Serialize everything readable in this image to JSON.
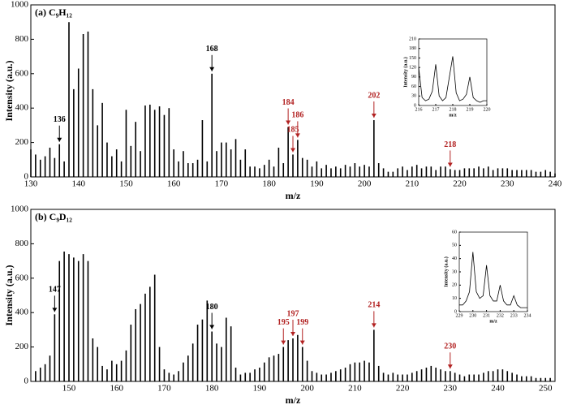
{
  "chart_data": [
    {
      "type": "stem",
      "title": "(a) C₉H₁₂",
      "xlabel": "m/z",
      "ylabel": "Intensity (a.u.)",
      "color": "#000000",
      "xlim": [
        130,
        240
      ],
      "ylim": [
        0,
        1000
      ],
      "xticks": [
        130,
        140,
        150,
        160,
        170,
        180,
        190,
        200,
        210,
        220,
        230,
        240
      ],
      "yticks": [
        0,
        200,
        400,
        600,
        800,
        1000
      ],
      "x": [
        130,
        131,
        132,
        133,
        134,
        135,
        136,
        137,
        138,
        139,
        140,
        141,
        142,
        143,
        144,
        145,
        146,
        147,
        148,
        149,
        150,
        151,
        152,
        153,
        154,
        155,
        156,
        157,
        158,
        159,
        160,
        161,
        162,
        163,
        164,
        165,
        166,
        167,
        168,
        169,
        170,
        171,
        172,
        173,
        174,
        175,
        176,
        177,
        178,
        179,
        180,
        181,
        182,
        183,
        184,
        185,
        186,
        187,
        188,
        189,
        190,
        191,
        192,
        193,
        194,
        195,
        196,
        197,
        198,
        199,
        200,
        201,
        202,
        203,
        204,
        205,
        206,
        207,
        208,
        209,
        210,
        211,
        212,
        213,
        214,
        215,
        216,
        217,
        218,
        219,
        220,
        221,
        222,
        223,
        224,
        225,
        226,
        227,
        228,
        229,
        230,
        231,
        232,
        233,
        234,
        235,
        236,
        237,
        238,
        239,
        240
      ],
      "values": [
        160,
        130,
        100,
        120,
        170,
        110,
        190,
        90,
        900,
        510,
        630,
        830,
        845,
        510,
        300,
        430,
        200,
        120,
        160,
        90,
        390,
        180,
        320,
        150,
        415,
        420,
        390,
        410,
        360,
        400,
        160,
        90,
        150,
        80,
        80,
        100,
        330,
        90,
        600,
        150,
        200,
        200,
        160,
        220,
        100,
        160,
        60,
        60,
        50,
        70,
        100,
        60,
        170,
        80,
        290,
        130,
        215,
        110,
        100,
        60,
        90,
        50,
        70,
        50,
        60,
        50,
        70,
        60,
        80,
        60,
        70,
        60,
        330,
        80,
        50,
        30,
        30,
        50,
        60,
        40,
        60,
        70,
        50,
        60,
        60,
        40,
        60,
        60,
        45,
        40,
        40,
        50,
        50,
        50,
        60,
        50,
        60,
        40,
        50,
        50,
        50,
        40,
        40,
        40,
        40,
        40,
        30,
        30,
        40,
        30,
        20
      ],
      "annotations": [
        {
          "x": 136,
          "color": "#000000"
        },
        {
          "x": 168,
          "color": "#000000"
        },
        {
          "x": 184,
          "color": "#b22222"
        },
        {
          "x": 185,
          "color": "#b22222"
        },
        {
          "x": 186,
          "color": "#b22222"
        },
        {
          "x": 202,
          "color": "#b22222"
        },
        {
          "x": 218,
          "color": "#b22222"
        }
      ]
    },
    {
      "type": "line",
      "xlabel": "m/z",
      "ylabel": "Intensity (a.u.)",
      "color": "#000000",
      "xlim": [
        216,
        220
      ],
      "ylim": [
        0,
        210
      ],
      "xticks": [
        216,
        217,
        218,
        219,
        220
      ],
      "yticks": [
        0,
        30,
        60,
        90,
        120,
        150,
        180,
        210
      ],
      "x": [
        216,
        216.2,
        216.4,
        216.6,
        216.8,
        217,
        217.2,
        217.4,
        217.6,
        217.8,
        218,
        218.2,
        218.4,
        218.6,
        218.8,
        219,
        219.2,
        219.4,
        219.6,
        219.8,
        220
      ],
      "values": [
        120,
        25,
        15,
        20,
        45,
        130,
        30,
        15,
        25,
        90,
        155,
        40,
        15,
        20,
        35,
        90,
        25,
        15,
        10,
        15,
        15
      ]
    },
    {
      "type": "stem",
      "title": "(b) C₉D₁₂",
      "xlabel": "m/z",
      "ylabel": "Intensity (a.u.)",
      "color": "#000000",
      "xlim": [
        142,
        252
      ],
      "ylim": [
        0,
        1000
      ],
      "xticks": [
        150,
        160,
        170,
        180,
        190,
        200,
        210,
        220,
        230,
        240,
        250
      ],
      "yticks": [
        0,
        200,
        400,
        600,
        800,
        1000
      ],
      "x": [
        143,
        144,
        145,
        146,
        147,
        148,
        149,
        150,
        151,
        152,
        153,
        154,
        155,
        156,
        157,
        158,
        159,
        160,
        161,
        162,
        163,
        164,
        165,
        166,
        167,
        168,
        169,
        170,
        171,
        172,
        173,
        174,
        175,
        176,
        177,
        178,
        179,
        180,
        181,
        182,
        183,
        184,
        185,
        186,
        187,
        188,
        189,
        190,
        191,
        192,
        193,
        194,
        195,
        196,
        197,
        198,
        199,
        200,
        201,
        202,
        203,
        204,
        205,
        206,
        207,
        208,
        209,
        210,
        211,
        212,
        213,
        214,
        215,
        216,
        217,
        218,
        219,
        220,
        221,
        222,
        223,
        224,
        225,
        226,
        227,
        228,
        229,
        230,
        231,
        232,
        233,
        234,
        235,
        236,
        237,
        238,
        239,
        240,
        241,
        242,
        243,
        244,
        245,
        246,
        247,
        248,
        249,
        250,
        251
      ],
      "values": [
        60,
        80,
        100,
        150,
        390,
        700,
        755,
        740,
        720,
        700,
        740,
        700,
        250,
        200,
        90,
        70,
        120,
        100,
        120,
        180,
        330,
        420,
        450,
        510,
        550,
        620,
        200,
        70,
        50,
        40,
        60,
        110,
        150,
        220,
        330,
        360,
        470,
        290,
        220,
        200,
        370,
        320,
        80,
        40,
        50,
        50,
        70,
        80,
        110,
        140,
        150,
        160,
        200,
        240,
        250,
        270,
        200,
        120,
        60,
        50,
        40,
        40,
        50,
        60,
        70,
        80,
        100,
        110,
        110,
        120,
        110,
        300,
        90,
        50,
        40,
        50,
        40,
        40,
        40,
        50,
        60,
        70,
        80,
        90,
        80,
        70,
        60,
        60,
        50,
        40,
        30,
        40,
        40,
        40,
        50,
        60,
        60,
        70,
        70,
        60,
        50,
        40,
        30,
        30,
        30,
        20,
        20,
        20,
        20
      ],
      "annotations": [
        {
          "x": 147,
          "color": "#000000"
        },
        {
          "x": 180,
          "color": "#000000"
        },
        {
          "x": 195,
          "color": "#b22222"
        },
        {
          "x": 197,
          "color": "#b22222"
        },
        {
          "x": 199,
          "color": "#b22222"
        },
        {
          "x": 214,
          "color": "#b22222"
        },
        {
          "x": 230,
          "color": "#b22222"
        }
      ]
    },
    {
      "type": "line",
      "xlabel": "m/z",
      "ylabel": "Intensity (a.u.)",
      "color": "#000000",
      "xlim": [
        229,
        234
      ],
      "ylim": [
        0,
        60
      ],
      "xticks": [
        229,
        230,
        231,
        232,
        233,
        234
      ],
      "yticks": [
        0,
        10,
        20,
        30,
        40,
        50,
        60
      ],
      "x": [
        229,
        229.25,
        229.5,
        229.75,
        230,
        230.25,
        230.5,
        230.75,
        231,
        231.25,
        231.5,
        231.75,
        232,
        232.25,
        232.5,
        232.75,
        233,
        233.25,
        233.5,
        233.75,
        234
      ],
      "values": [
        5,
        5,
        8,
        15,
        45,
        15,
        10,
        12,
        35,
        12,
        8,
        8,
        20,
        8,
        5,
        5,
        12,
        5,
        3,
        3,
        3
      ]
    }
  ]
}
